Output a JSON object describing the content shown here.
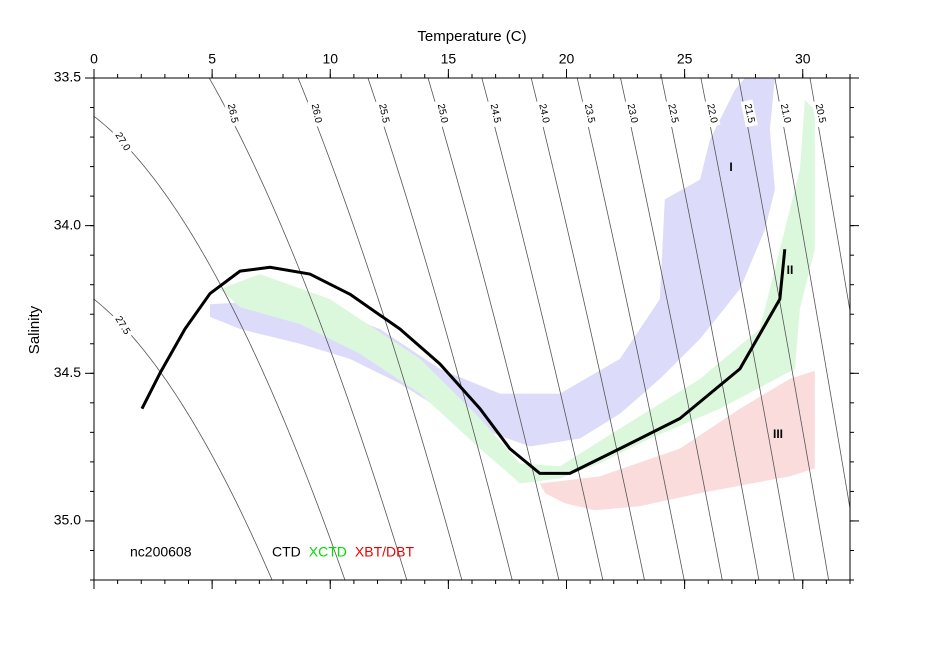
{
  "chart_data": {
    "type": "ts-diagram",
    "x_label": "Temperature (C)",
    "y_label": "Salinity",
    "annotation": "nc200608",
    "xlim": [
      0,
      32
    ],
    "ylim": [
      33.5,
      35.2
    ],
    "y_inverted": true,
    "xticks": [
      0,
      5,
      10,
      15,
      20,
      25,
      30
    ],
    "yticks": [
      33.5,
      {
        "value": 34.0,
        "label": "34.0"
      },
      34.5,
      {
        "value": 35.0,
        "label": "35.0"
      }
    ],
    "xminor_step": 1,
    "yminor_step": 0.1,
    "contours": [
      {
        "value": 27.5,
        "label": "27.5"
      },
      {
        "value": 27.0,
        "label": "27.0"
      },
      {
        "value": 26.5,
        "label": "26.5"
      },
      {
        "value": 26.0,
        "label": "26.0"
      },
      {
        "value": 25.5,
        "label": "25.5"
      },
      {
        "value": 25.0,
        "label": "25.0"
      },
      {
        "value": 24.5,
        "label": "24.5"
      },
      {
        "value": 24.0,
        "label": "24.0"
      },
      {
        "value": 23.5,
        "label": "23.5"
      },
      {
        "value": 23.0,
        "label": "23.0"
      },
      {
        "value": 22.5,
        "label": "22.5"
      },
      {
        "value": 22.0,
        "label": "22.0"
      },
      {
        "value": 21.5,
        "label": "21.5"
      },
      {
        "value": 21.0,
        "label": "21.0"
      },
      20.5
    ],
    "legend": [
      {
        "label": "CTD",
        "color": "#000000"
      },
      {
        "label": "XCTD",
        "color": "#00dd00"
      },
      {
        "label": "XBT/DBT",
        "color": "#ee0000"
      }
    ],
    "regions": [
      {
        "name": "I",
        "color": "#dcdcfa",
        "T": [
          4.91,
          8.72,
          12.1,
          14.64,
          17.18,
          19.72,
          22.26,
          23.95,
          24.16,
          25.65,
          26.07,
          27.13,
          27.55,
          28.82,
          28.61,
          28.82,
          28.4,
          27.34,
          25.65,
          23.95,
          22.26,
          20.57,
          18.45,
          16.34,
          14.64,
          12.95,
          10.83,
          8.72,
          6.18,
          4.91
        ],
        "S": [
          34.266,
          34.249,
          34.35,
          34.485,
          34.569,
          34.569,
          34.451,
          34.249,
          33.911,
          33.844,
          33.709,
          33.54,
          33.5,
          33.5,
          33.675,
          33.878,
          34.013,
          34.215,
          34.384,
          34.519,
          34.637,
          34.721,
          34.748,
          34.687,
          34.62,
          34.535,
          34.451,
          34.4,
          34.35,
          34.309
        ]
      },
      {
        "name": "II",
        "color": "#dcf8dc",
        "T": [
          5.33,
          7.02,
          9.99,
          13.8,
          16.34,
          18.03,
          19.72,
          22.26,
          25.65,
          28.18,
          29.03,
          29.88,
          30.09,
          30.51,
          30.51,
          29.88,
          29.67,
          26.49,
          23.53,
          21.41,
          19.72,
          18.03,
          16.34,
          13.8,
          11.26,
          8.72,
          6.18
        ],
        "S": [
          34.215,
          34.164,
          34.249,
          34.451,
          34.653,
          34.805,
          34.815,
          34.687,
          34.519,
          34.35,
          34.08,
          33.81,
          33.574,
          33.608,
          34.08,
          34.282,
          34.485,
          34.62,
          34.721,
          34.805,
          34.856,
          34.873,
          34.755,
          34.569,
          34.434,
          34.333,
          34.276
        ]
      },
      {
        "name": "III",
        "color": "#fadcdc",
        "T": [
          18.87,
          21.41,
          24.8,
          27.34,
          29.45,
          30.51,
          30.51,
          29.45,
          25.65,
          23.11,
          21.2,
          19.93,
          19.09
        ],
        "S": [
          34.873,
          34.849,
          34.755,
          34.62,
          34.519,
          34.492,
          34.822,
          34.849,
          34.906,
          34.95,
          34.964,
          34.94,
          34.906
        ]
      }
    ],
    "series": [
      {
        "name": "CTD",
        "color": "#000000",
        "T": [
          2.03,
          2.79,
          3.85,
          4.91,
          6.18,
          7.45,
          9.14,
          10.83,
          12.95,
          14.64,
          16.34,
          17.6,
          18.87,
          20.14,
          22.26,
          24.8,
          27.34,
          29.03,
          29.24
        ],
        "S": [
          34.62,
          34.5,
          34.35,
          34.23,
          34.154,
          34.141,
          34.164,
          34.232,
          34.35,
          34.468,
          34.62,
          34.755,
          34.839,
          34.839,
          34.755,
          34.653,
          34.485,
          34.249,
          34.08
        ]
      }
    ]
  }
}
